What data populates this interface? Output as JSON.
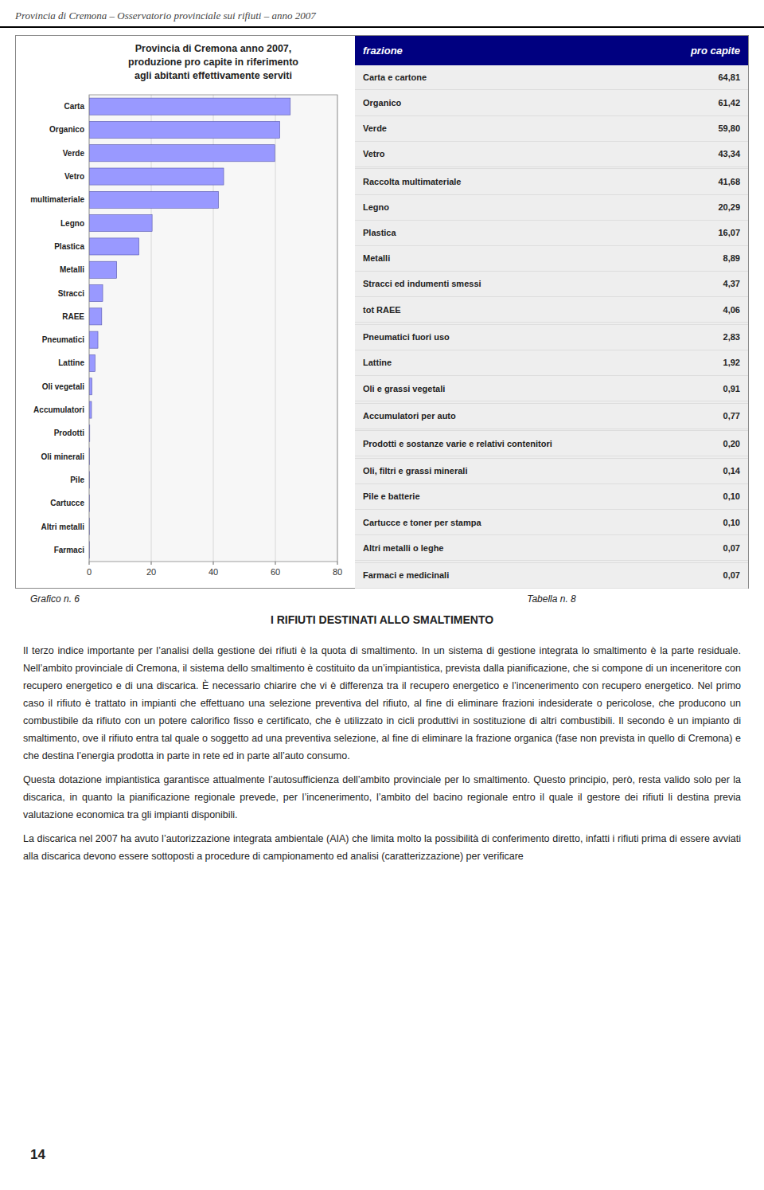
{
  "page_header": "Provincia di Cremona – Osservatorio provinciale sui rifiuti – anno 2007",
  "chart_data": {
    "type": "bar",
    "orientation": "horizontal",
    "title": "Provincia di Cremona anno 2007,\nproduzione pro capite in riferimento\nagli abitanti effettivamente serviti",
    "categories": [
      "Carta",
      "Organico",
      "Verde",
      "Vetro",
      "multimateriale",
      "Legno",
      "Plastica",
      "Metalli",
      "Stracci",
      "RAEE",
      "Pneumatici",
      "Lattine",
      "Oli vegetali",
      "Accumulatori",
      "Prodotti",
      "Oli minerali",
      "Pile",
      "Cartucce",
      "Altri metalli",
      "Farmaci"
    ],
    "values": [
      64.81,
      61.42,
      59.8,
      43.34,
      41.68,
      20.29,
      16.07,
      8.89,
      4.37,
      4.06,
      2.83,
      1.92,
      0.91,
      0.77,
      0.2,
      0.14,
      0.1,
      0.1,
      0.07,
      0.07
    ],
    "color": "#9999ff",
    "xlim": [
      0,
      80
    ],
    "xticks": [
      0,
      20,
      40,
      60,
      80
    ],
    "grid": true
  },
  "chart_caption": "Grafico n. 6",
  "table": {
    "caption": "Tabella n. 8",
    "header": [
      "frazione",
      "pro capite"
    ],
    "rows": [
      [
        "Carta e cartone",
        "64,81"
      ],
      [
        "Organico",
        "61,42"
      ],
      [
        "Verde",
        "59,80"
      ],
      [
        "Vetro",
        "43,34"
      ],
      null,
      [
        "Raccolta multimateriale",
        "41,68"
      ],
      [
        "Legno",
        "20,29"
      ],
      [
        "Plastica",
        "16,07"
      ],
      [
        "Metalli",
        "8,89"
      ],
      [
        "Stracci ed indumenti smessi",
        "4,37"
      ],
      [
        "tot RAEE",
        "4,06"
      ],
      null,
      [
        "Pneumatici fuori uso",
        "2,83"
      ],
      [
        "Lattine",
        "1,92"
      ],
      [
        "Oli e grassi vegetali",
        "0,91"
      ],
      null,
      [
        "Accumulatori per auto",
        "0,77"
      ],
      null,
      [
        "Prodotti e sostanze varie e relativi contenitori",
        "0,20"
      ],
      null,
      [
        "Oli, filtri e grassi minerali",
        "0,14"
      ],
      [
        "Pile e batterie",
        "0,10"
      ],
      [
        "Cartucce e toner per stampa",
        "0,10"
      ],
      [
        "Altri metalli o leghe",
        "0,07"
      ],
      null,
      [
        "Farmaci e medicinali",
        "0,07"
      ]
    ]
  },
  "body": {
    "title": "I RIFIUTI DESTINATI ALLO SMALTIMENTO",
    "paragraphs": [
      "Il terzo indice importante per l’analisi della gestione dei rifiuti è la quota di smaltimento. In un sistema di gestione integrata lo smaltimento è la parte residuale. Nell’ambito provinciale di Cremona, il sistema dello smaltimento è costituito da un’impiantistica, prevista dalla pianificazione, che si compone di un inceneritore con recupero energetico e di una discarica. È necessario chiarire che vi è differenza tra il recupero energetico e l’incenerimento con recupero energetico. Nel primo caso il rifiuto è trattato in impianti che effettuano una selezione preventiva del rifiuto, al fine di eliminare frazioni indesiderate o pericolose, che producono un combustibile da rifiuto con un potere calorifico fisso e certificato, che è utilizzato in cicli produttivi in sostituzione di altri combustibili. Il secondo è un impianto di smaltimento, ove il rifiuto entra tal quale o soggetto ad una preventiva selezione, al fine di eliminare la frazione organica (fase non prevista in quello di Cremona) e che destina l’energia prodotta in parte in rete ed in parte all’auto consumo.",
      "Questa dotazione impiantistica garantisce attualmente l’autosufficienza dell’ambito provinciale per lo smaltimento. Questo principio, però, resta valido solo per la discarica, in quanto la pianificazione regionale prevede, per l’incenerimento, l’ambito del bacino regionale entro il quale il gestore dei rifiuti li destina previa valutazione economica tra gli impianti disponibili.",
      "La discarica nel 2007 ha avuto l’autorizzazione integrata ambientale (AIA) che limita molto la possibilità di conferimento diretto, infatti i rifiuti prima di essere avviati alla discarica devono essere sottoposti a procedure di campionamento ed analisi (caratterizzazione) per verificare"
    ]
  },
  "footer_page": "14"
}
